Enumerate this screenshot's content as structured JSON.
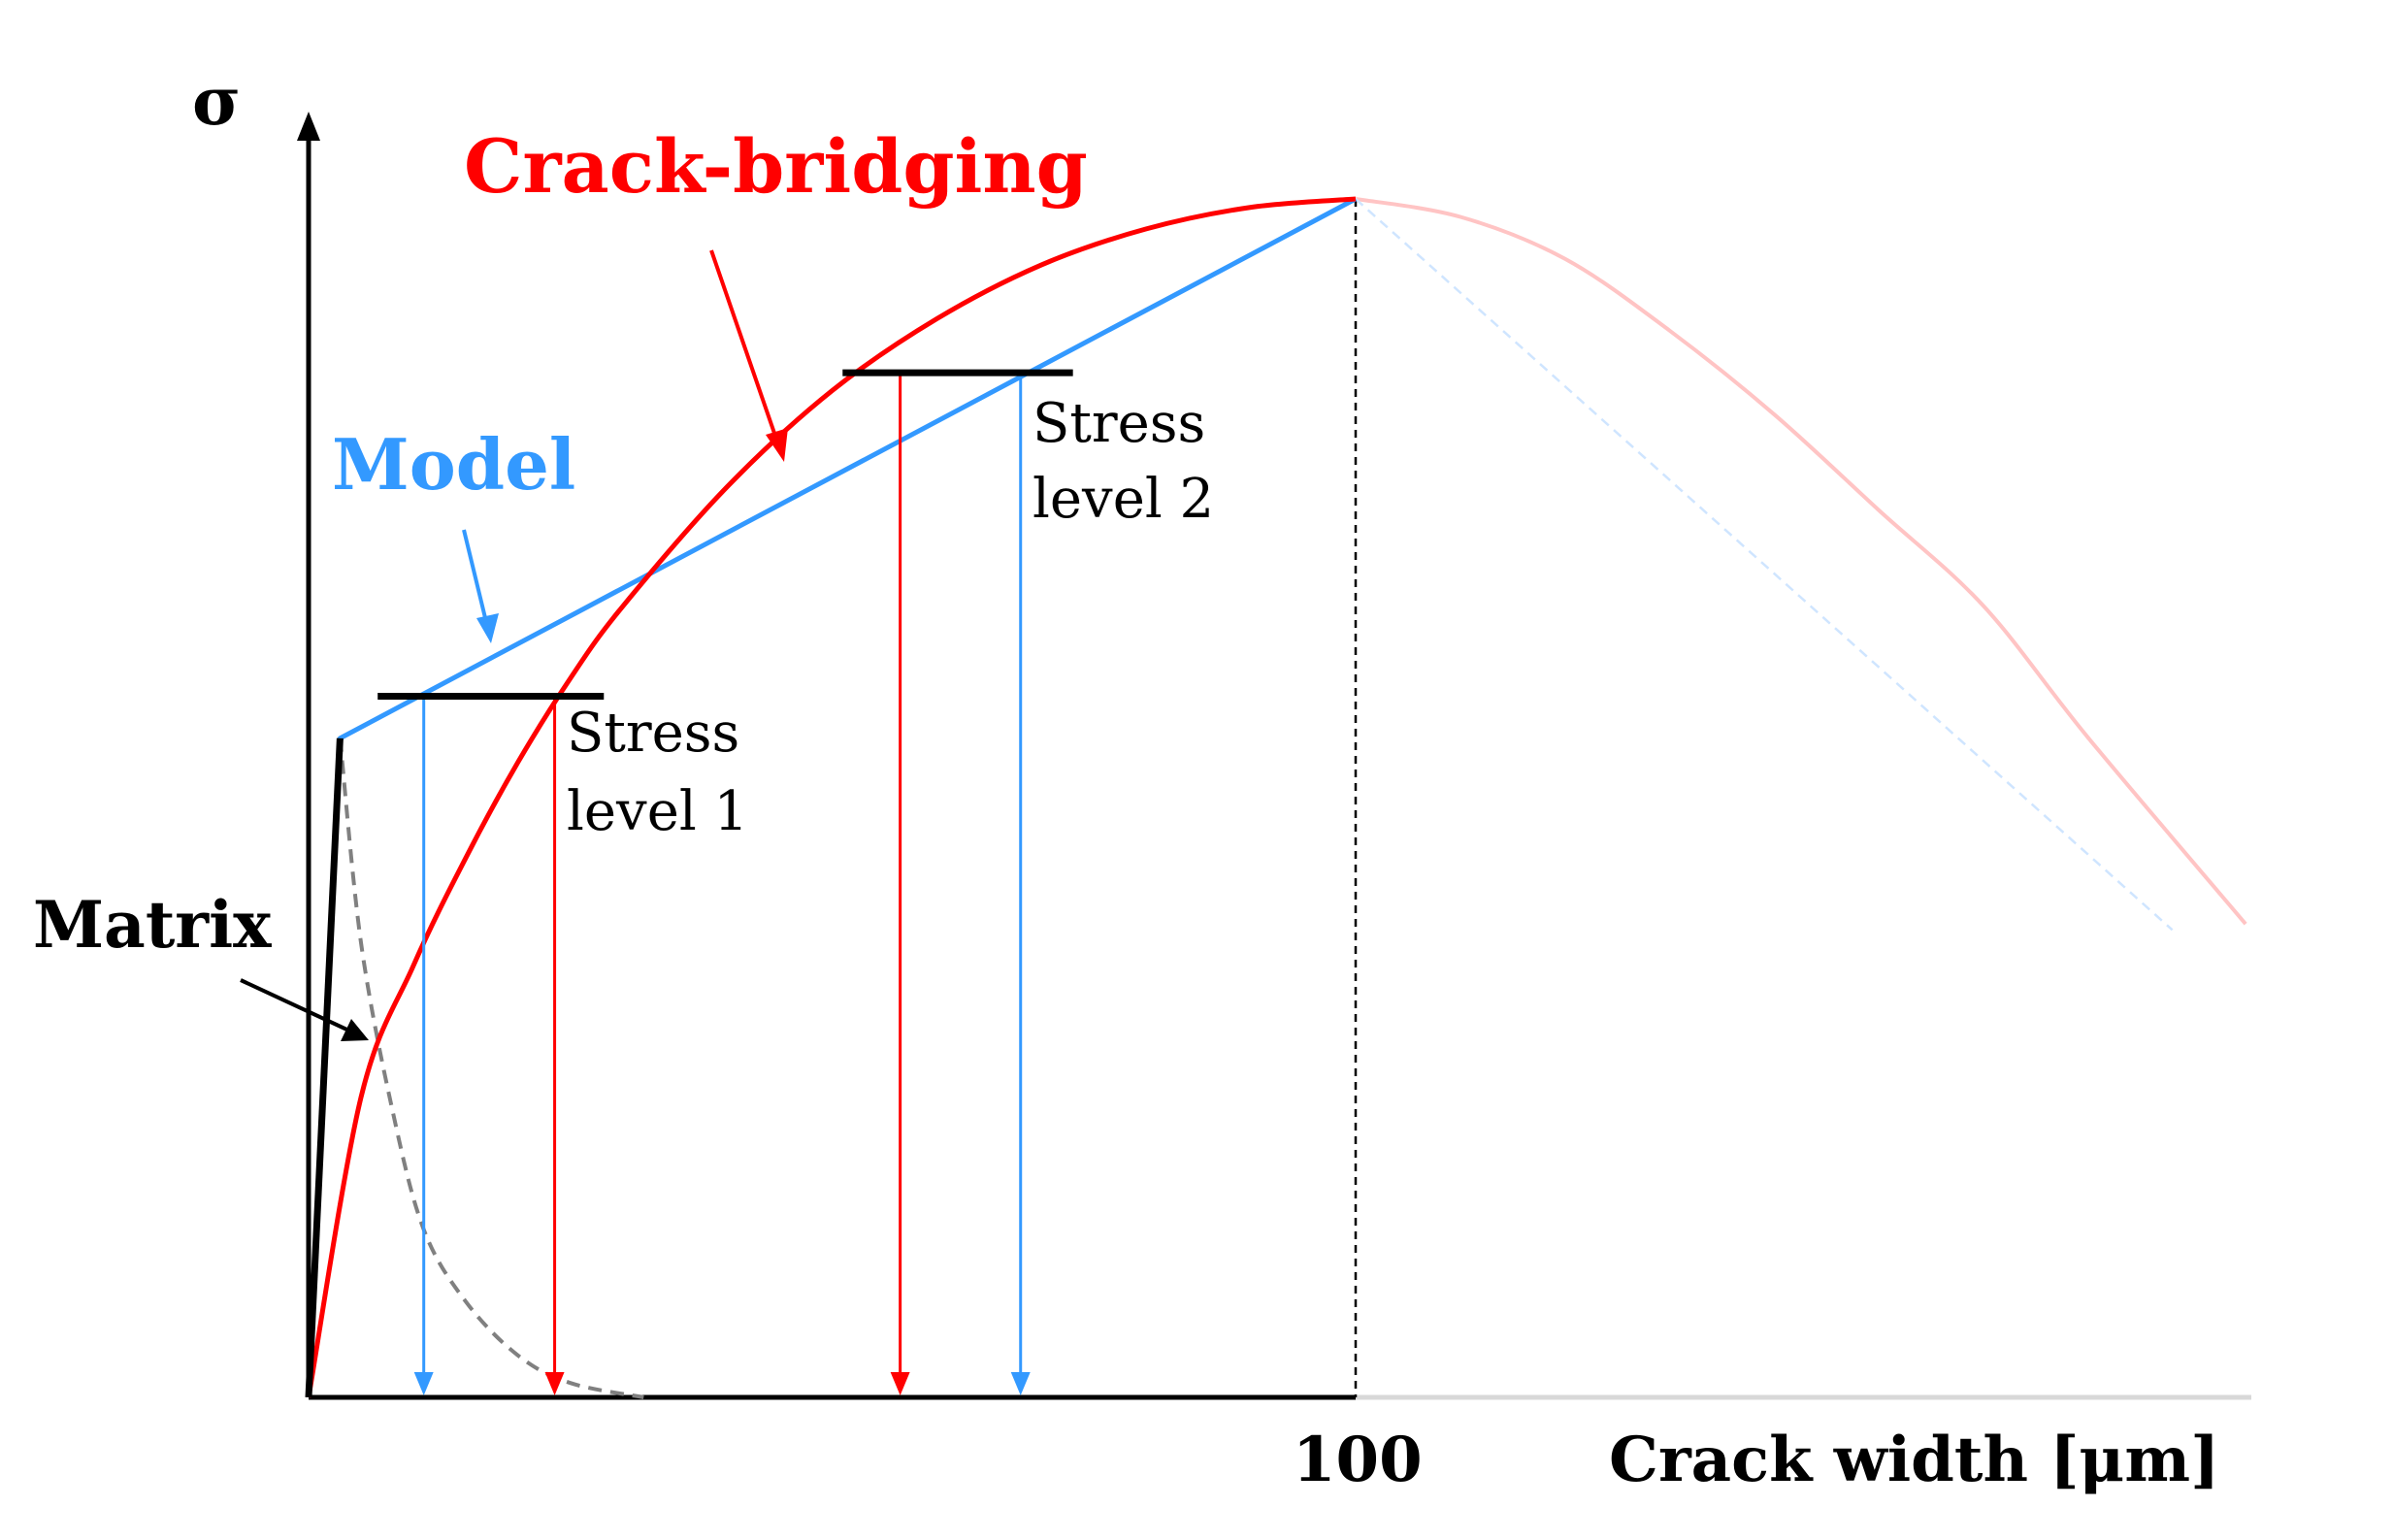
{
  "chart_data": {
    "type": "line",
    "title": "",
    "xlabel": "Crack width [μm]",
    "ylabel": "σ",
    "x_ticks": [
      {
        "x": 100,
        "label": "100"
      }
    ],
    "xlim": [
      0,
      185
    ],
    "ylim": [
      0,
      1
    ],
    "grid": false,
    "series": [
      {
        "name": "Crack-bridging",
        "color": "#ff0000",
        "x": [
          0,
          5,
          10,
          15,
          20,
          25,
          30,
          40,
          50,
          60,
          70,
          80,
          90,
          100
        ],
        "y": [
          0,
          0.25,
          0.36,
          0.45,
          0.53,
          0.6,
          0.66,
          0.76,
          0.84,
          0.9,
          0.945,
          0.975,
          0.993,
          1.0
        ],
        "faded_continuation": {
          "x": [
            100,
            110,
            120,
            130,
            140,
            150,
            160,
            170,
            185
          ],
          "y": [
            1.0,
            0.985,
            0.95,
            0.89,
            0.82,
            0.74,
            0.66,
            0.55,
            0.395
          ]
        }
      },
      {
        "name": "Model",
        "color": "#3399ff",
        "x": [
          0,
          3,
          100
        ],
        "y": [
          0,
          0.55,
          1.0
        ],
        "faded_continuation": {
          "x": [
            100,
            178
          ],
          "y": [
            1.0,
            0.39
          ]
        }
      },
      {
        "name": "Matrix",
        "color": "#000000",
        "x": [
          0,
          3
        ],
        "y": [
          0,
          0.55
        ],
        "softening": {
          "color": "#808080",
          "x": [
            3,
            5,
            8,
            11,
            15,
            20,
            25,
            32
          ],
          "y": [
            0.55,
            0.38,
            0.24,
            0.14,
            0.08,
            0.035,
            0.012,
            0
          ]
        }
      }
    ],
    "stress_levels": [
      {
        "name": "Stress level 1",
        "label_line1": "Stress",
        "label_line2": "level 1",
        "y": 0.585,
        "x_start": 6.6,
        "x_end": 28.2,
        "x_model": 11,
        "x_bridging": 23.5
      },
      {
        "name": "Stress level 2",
        "label_line1": "Stress",
        "label_line2": "level 2",
        "y": 0.855,
        "x_start": 51,
        "x_end": 73,
        "x_model": 68,
        "x_bridging": 56.5
      }
    ],
    "annotations": [
      "Crack-bridging",
      "Model",
      "Matrix"
    ]
  },
  "labels": {
    "sigma": "σ",
    "crack_bridging": "Crack-bridging",
    "model": "Model",
    "matrix": "Matrix",
    "stress1_line1": "Stress",
    "stress1_line2": "level 1",
    "stress2_line1": "Stress",
    "stress2_line2": "level 2",
    "tick_100": "100",
    "xlabel": "Crack width [μm]"
  },
  "colors": {
    "bridging": "#ff0000",
    "bridging_faded": "#ffc4c4",
    "model": "#3399ff",
    "model_faded": "#cfe5ff",
    "matrix": "#000000",
    "softening": "#808080",
    "axis": "#000000"
  }
}
